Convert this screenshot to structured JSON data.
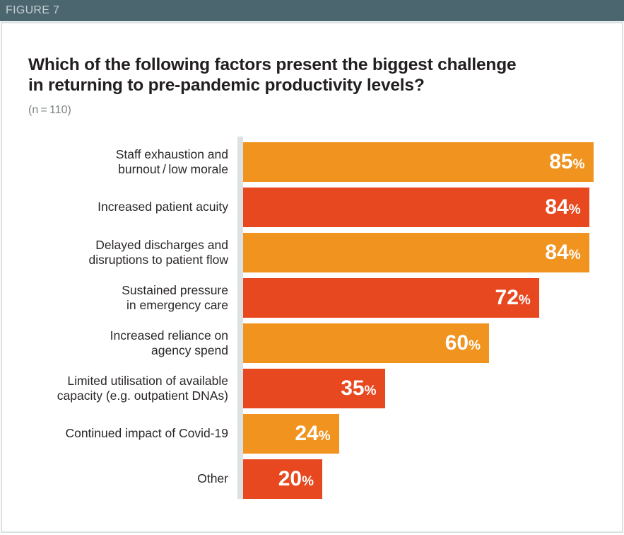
{
  "header": {
    "figure_label": "FIGURE 7",
    "bg_color": "#4C6670",
    "text_color": "#C6CDD0"
  },
  "title": "Which of the following factors present the biggest challenge\nin returning to pre-pandemic productivity levels?",
  "sample_size": "(n = 110)",
  "chart_data": {
    "type": "bar",
    "orientation": "horizontal",
    "title": "Which of the following factors present the biggest challenge in returning to pre-pandemic productivity levels?",
    "subtitle": "(n=110)",
    "unit": "%",
    "xlim": [
      0,
      100
    ],
    "grid": false,
    "legend": false,
    "value_label_position": "inside-end",
    "categories": [
      "Staff exhaustion and\nburnout / low morale",
      "Increased patient acuity",
      "Delayed discharges and\ndisruptions to patient flow",
      "Sustained pressure\nin emergency care",
      "Increased reliance on\nagency spend",
      "Limited utilisation of available\ncapacity (e.g. outpatient DNAs)",
      "Continued impact of Covid-19",
      "Other"
    ],
    "values": [
      85,
      84,
      84,
      72,
      60,
      35,
      24,
      20
    ],
    "bar_colors": [
      "#F0931F",
      "#E7481F",
      "#F0931F",
      "#E7481F",
      "#F0931F",
      "#E7481F",
      "#F0931F",
      "#E7481F"
    ],
    "axis_line_color": "#DCE1E4"
  },
  "palette": {
    "orange": "#F0931F",
    "red": "#E7481F",
    "panel_border": "#DBE0E3",
    "title_text": "#231F20",
    "sample_text": "#7D8486",
    "category_text": "#2B2728",
    "value_text": "#FFFFFF"
  }
}
